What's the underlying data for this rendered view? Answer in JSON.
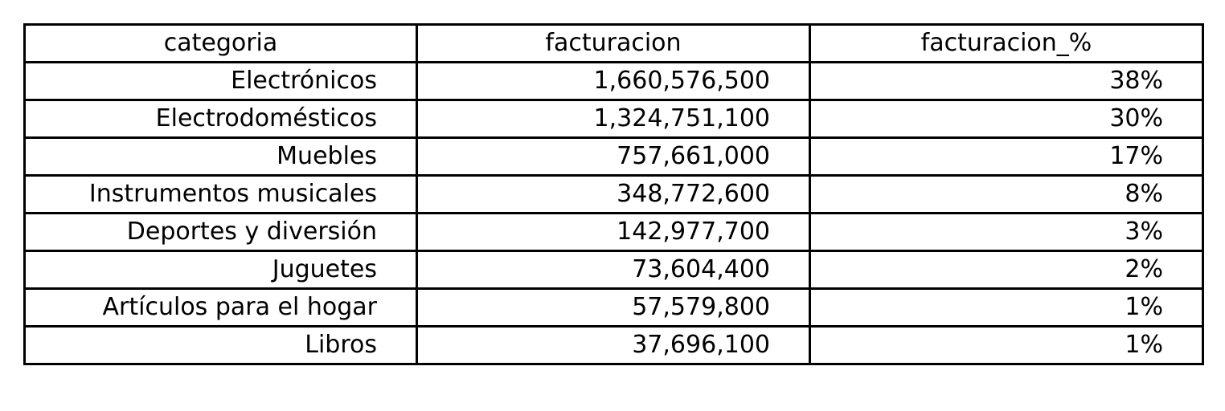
{
  "chart_data": {
    "type": "table",
    "columns": [
      "categoria",
      "facturacion",
      "facturacion_%"
    ],
    "rows": [
      [
        "Electrónicos",
        "1,660,576,500",
        "38%"
      ],
      [
        "Electrodomésticos",
        "1,324,751,100",
        "30%"
      ],
      [
        "Muebles",
        "757,661,000",
        "17%"
      ],
      [
        "Instrumentos musicales",
        "348,772,600",
        "8%"
      ],
      [
        "Deportes y diversión",
        "142,977,700",
        "3%"
      ],
      [
        "Juguetes",
        "73,604,400",
        "2%"
      ],
      [
        "Artículos para el hogar",
        "57,579,800",
        "1%"
      ],
      [
        "Libros",
        "37,696,100",
        "1%"
      ]
    ]
  }
}
